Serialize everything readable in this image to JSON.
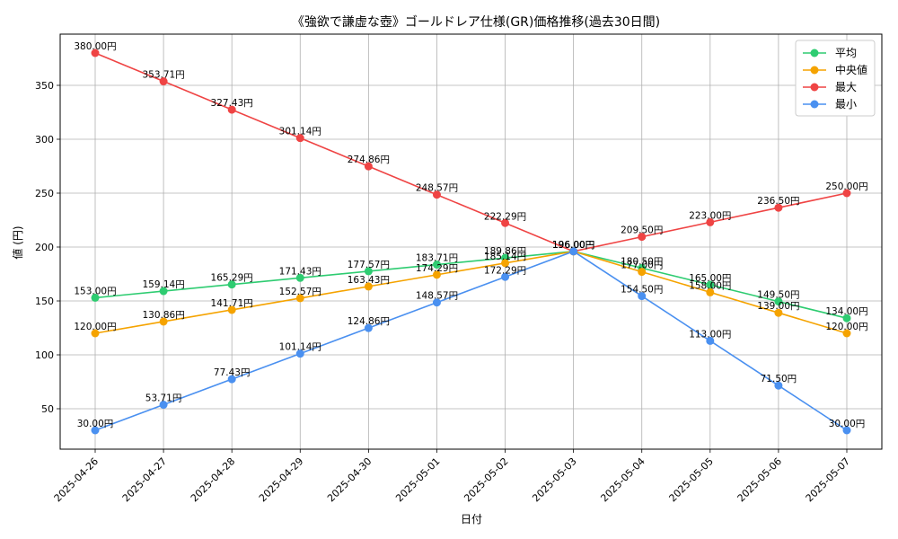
{
  "chart_data": {
    "type": "line",
    "title": "《強欲で謙虚な壺》ゴールドレア仕様(GR)価格推移(過去30日間)",
    "xlabel": "日付",
    "ylabel": "値 (円)",
    "categories": [
      "2025-04-26",
      "2025-04-27",
      "2025-04-28",
      "2025-04-29",
      "2025-04-30",
      "2025-05-01",
      "2025-05-02",
      "2025-05-03",
      "2025-05-04",
      "2025-05-05",
      "2025-05-06",
      "2025-05-07"
    ],
    "ylim": [
      12.5,
      397.5
    ],
    "yticks": [
      50,
      100,
      150,
      200,
      250,
      300,
      350
    ],
    "grid": true,
    "legend_position": "top-right",
    "value_suffix": "円",
    "series": [
      {
        "name": "平均",
        "color": "#2ecc71",
        "values": [
          153.0,
          159.14,
          165.29,
          171.43,
          177.57,
          183.71,
          189.86,
          196.0,
          180.5,
          165.0,
          149.5,
          134.0
        ]
      },
      {
        "name": "中央値",
        "color": "#f5a300",
        "values": [
          120.0,
          130.86,
          141.71,
          152.57,
          163.43,
          174.29,
          185.14,
          196.0,
          177.0,
          158.0,
          139.0,
          120.0
        ]
      },
      {
        "name": "最大",
        "color": "#ef4444",
        "values": [
          380.0,
          353.71,
          327.43,
          301.14,
          274.86,
          248.57,
          222.29,
          196.0,
          209.5,
          223.0,
          236.5,
          250.0
        ]
      },
      {
        "name": "最小",
        "color": "#4a90f0",
        "values": [
          30.0,
          53.71,
          77.43,
          101.14,
          124.86,
          148.57,
          172.29,
          196.0,
          154.5,
          113.0,
          71.5,
          30.0
        ]
      }
    ]
  }
}
